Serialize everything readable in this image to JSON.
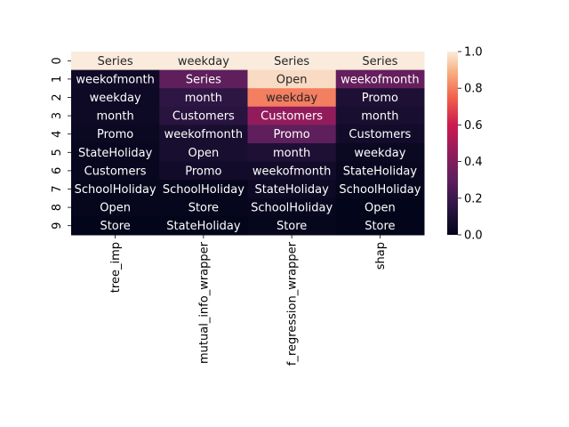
{
  "chart_data": {
    "type": "heatmap",
    "title": "",
    "rows": [
      "0",
      "1",
      "2",
      "3",
      "4",
      "5",
      "6",
      "7",
      "8",
      "9"
    ],
    "columns": [
      "tree_imp",
      "mutual_info_wrapper",
      "f_regression_wrapper",
      "shap"
    ],
    "annotations": [
      [
        "Series",
        "weekday",
        "Series",
        "Series"
      ],
      [
        "weekofmonth",
        "Series",
        "Open",
        "weekofmonth"
      ],
      [
        "weekday",
        "month",
        "weekday",
        "Promo"
      ],
      [
        "month",
        "Customers",
        "Customers",
        "month"
      ],
      [
        "Promo",
        "weekofmonth",
        "Promo",
        "Customers"
      ],
      [
        "StateHoliday",
        "Open",
        "month",
        "weekday"
      ],
      [
        "Customers",
        "Promo",
        "weekofmonth",
        "StateHoliday"
      ],
      [
        "SchoolHoliday",
        "SchoolHoliday",
        "StateHoliday",
        "SchoolHoliday"
      ],
      [
        "Open",
        "Store",
        "SchoolHoliday",
        "Open"
      ],
      [
        "Store",
        "StateHoliday",
        "Store",
        "Store"
      ]
    ],
    "values": [
      [
        1.0,
        1.0,
        1.0,
        1.0
      ],
      [
        0.05,
        0.3,
        0.97,
        0.32
      ],
      [
        0.04,
        0.16,
        0.8,
        0.1
      ],
      [
        0.04,
        0.14,
        0.45,
        0.08
      ],
      [
        0.03,
        0.08,
        0.3,
        0.06
      ],
      [
        0.02,
        0.08,
        0.1,
        0.03
      ],
      [
        0.02,
        0.06,
        0.06,
        0.02
      ],
      [
        0.01,
        0.01,
        0.04,
        0.01
      ],
      [
        0.01,
        0.01,
        0.02,
        0.0
      ],
      [
        0.0,
        0.0,
        0.01,
        0.0
      ]
    ],
    "colorbar": {
      "range": [
        0.0,
        1.0
      ],
      "ticks": [
        "0.0",
        "0.2",
        "0.4",
        "0.6",
        "0.8",
        "1.0"
      ],
      "colormap": "rocket"
    }
  }
}
